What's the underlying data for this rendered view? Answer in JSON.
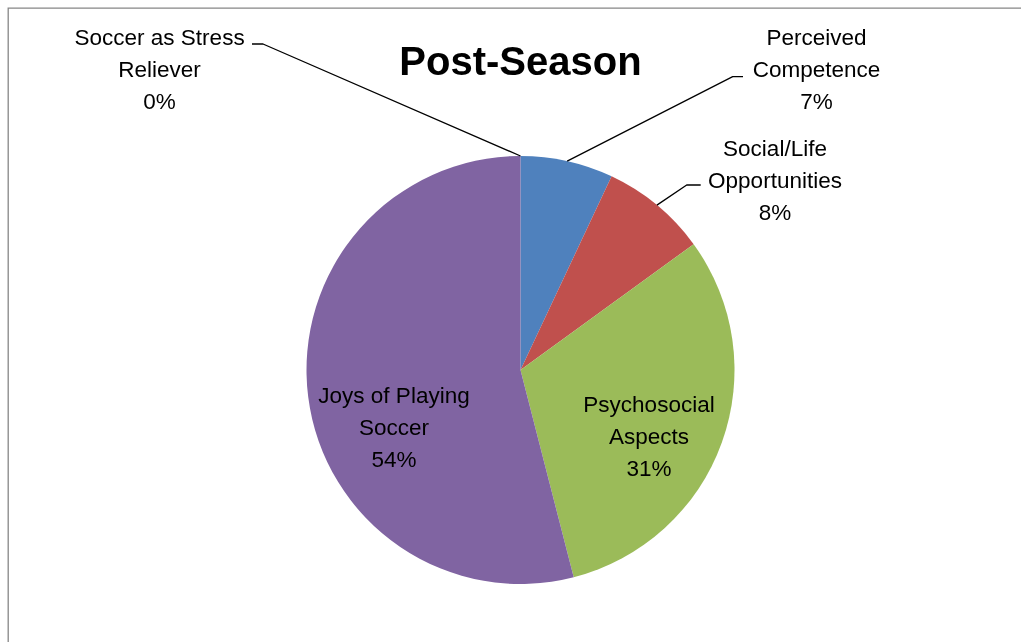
{
  "chart_data": {
    "type": "pie",
    "title": "Post-Season",
    "categories": [
      "Perceived Competence",
      "Social/Life Opportunities",
      "Psychosocial Aspects",
      "Joys of Playing Soccer",
      "Soccer as Stress Reliever"
    ],
    "values": [
      7,
      8,
      31,
      54,
      0
    ],
    "colors": [
      "#4f81bd",
      "#c0504d",
      "#9bbb59",
      "#8064a2",
      "#4bacc6"
    ],
    "value_labels": [
      "7%",
      "8%",
      "31%",
      "54%",
      "0%"
    ]
  }
}
